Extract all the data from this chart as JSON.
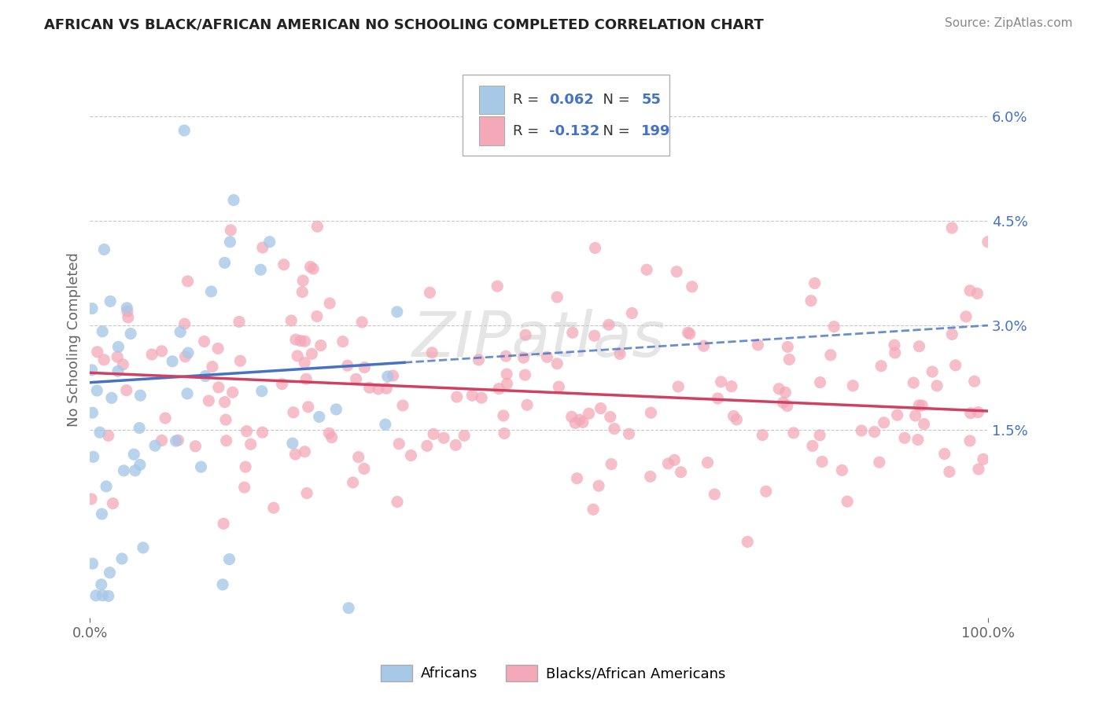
{
  "title": "AFRICAN VS BLACK/AFRICAN AMERICAN NO SCHOOLING COMPLETED CORRELATION CHART",
  "source": "Source: ZipAtlas.com",
  "ylabel": "No Schooling Completed",
  "legend_label1": "Africans",
  "legend_label2": "Blacks/African Americans",
  "r1": 0.062,
  "n1": 55,
  "r2": -0.132,
  "n2": 199,
  "xlim": [
    0,
    100
  ],
  "ylim_min": -1.2,
  "ylim_max": 6.8,
  "yticks": [
    0.0,
    1.5,
    3.0,
    4.5,
    6.0
  ],
  "ytick_labels": [
    "",
    "1.5%",
    "3.0%",
    "4.5%",
    "6.0%"
  ],
  "color_african": "#a8c8e8",
  "color_black": "#f4a8b8",
  "color_line_african": "#4472c4",
  "color_line_black": "#d04060",
  "watermark_text": "ZIPatlas",
  "background_color": "#ffffff",
  "grid_color": "#c8c8c8",
  "title_color": "#222222",
  "source_color": "#888888",
  "axis_label_color": "#666666",
  "tick_color": "#4472c4",
  "line1_intercept": 2.18,
  "line1_slope": 0.0082,
  "line2_intercept": 2.32,
  "line2_slope": -0.0055,
  "african_x_max": 35
}
